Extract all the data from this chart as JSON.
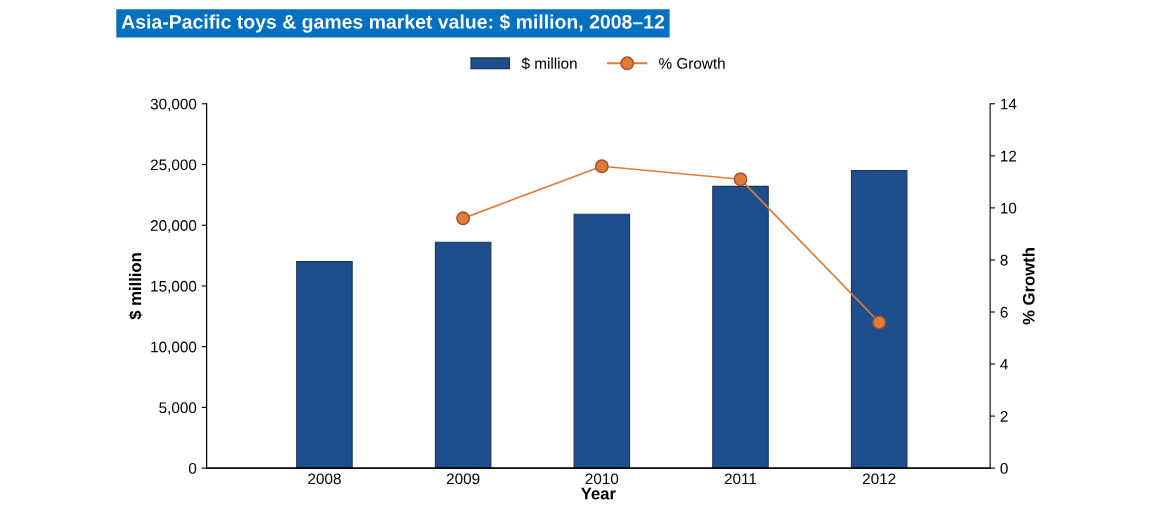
{
  "chart_data": {
    "type": "bar",
    "title": "Asia-Pacific toys & games market value: $ million, 2008–12",
    "xlabel": "Year",
    "ylabel": "$ million",
    "y2label": "% Growth",
    "categories": [
      "2008",
      "2009",
      "2010",
      "2011",
      "2012"
    ],
    "series": [
      {
        "name": "$ million",
        "color": "#1f4e8c",
        "values": [
          17000,
          18600,
          20900,
          23200,
          24500
        ]
      },
      {
        "name": "% Growth",
        "type": "line",
        "axis": "y2",
        "color": "#e07b39",
        "marker": "circle",
        "values": [
          null,
          9.6,
          11.6,
          11.1,
          5.6
        ]
      }
    ],
    "ylim": [
      0,
      30000
    ],
    "yticks": [
      {
        "value": 0,
        "label": "0"
      },
      {
        "value": 5000,
        "label": "5,000"
      },
      {
        "value": 10000,
        "label": "10,000"
      },
      {
        "value": 15000,
        "label": "15,000"
      },
      {
        "value": 20000,
        "label": "20,000"
      },
      {
        "value": 25000,
        "label": "25,000"
      },
      {
        "value": 30000,
        "label": "30,000"
      }
    ],
    "y2lim": [
      0,
      14
    ],
    "y2ticks": [
      0,
      2,
      4,
      6,
      8,
      10,
      12,
      14
    ],
    "grid": false,
    "legend": "top"
  }
}
